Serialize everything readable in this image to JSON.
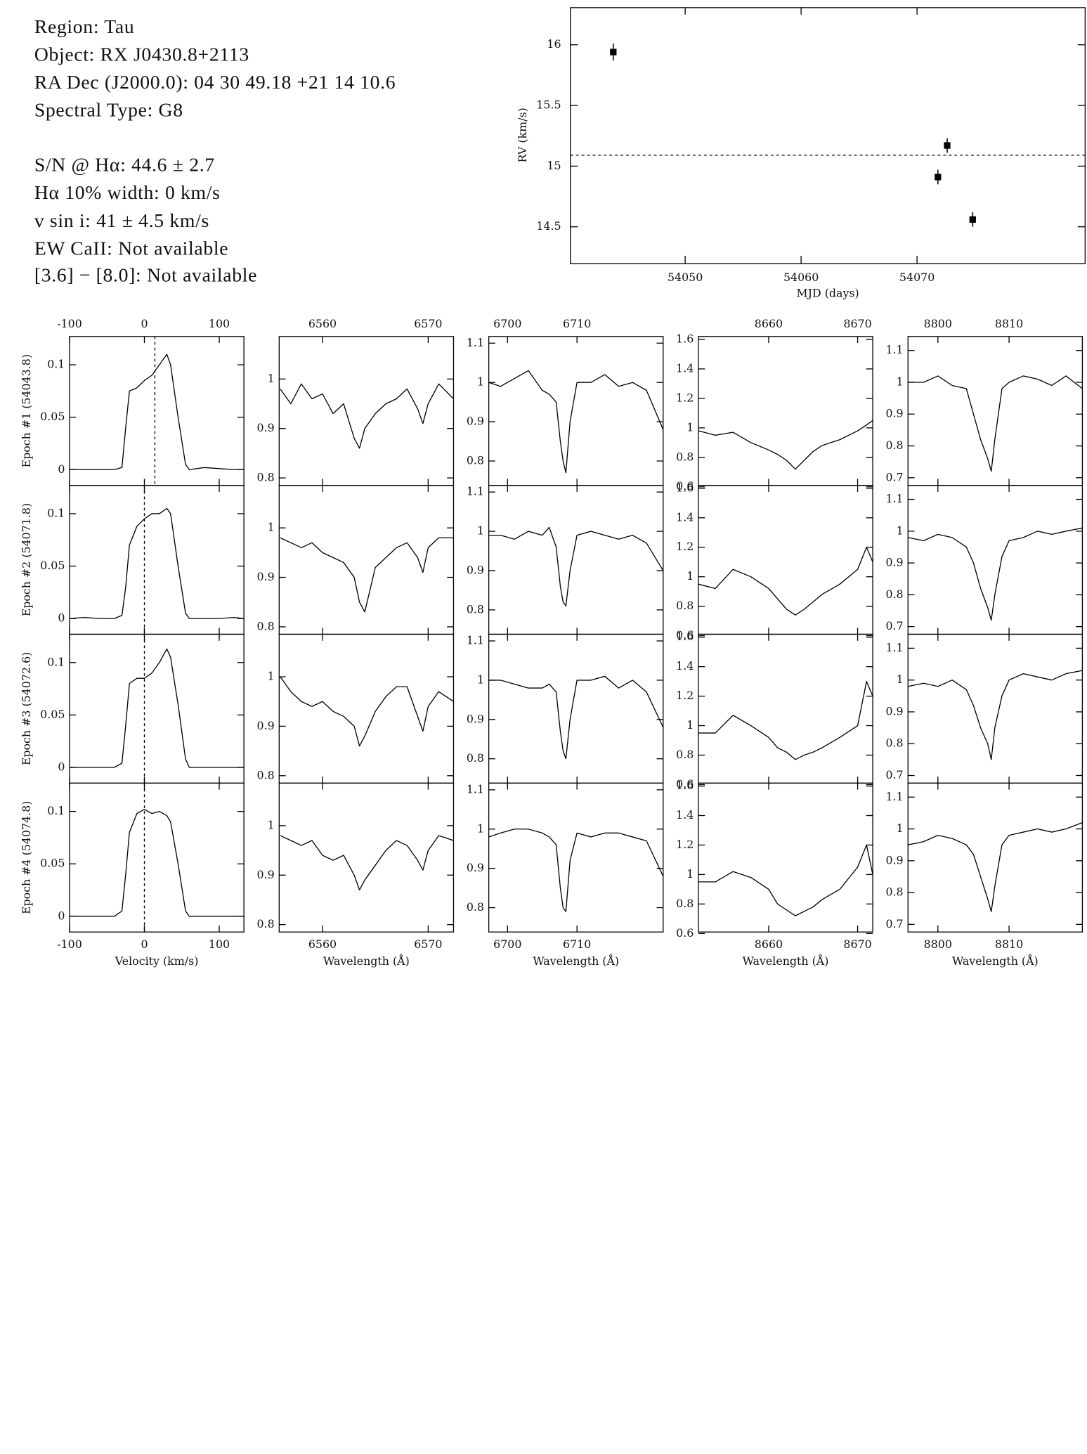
{
  "info": {
    "lines": [
      "Region: Tau",
      "Object: RX J0430.8+2113",
      "RA Dec (J2000.0): 04 30 49.18 +21 14 10.6",
      "Spectral Type: G8",
      "S/N @ Hα: 44.6 ± 2.7",
      "Hα 10% width: 0 km/s",
      "v sin i: 41 ± 4.5 km/s",
      "EW CaII: Not available",
      "[3.6] − [8.0]: Not available"
    ]
  },
  "chart_data": [
    {
      "type": "scatter",
      "xlabel": "MJD (days)",
      "ylabel": "RV (km/s)",
      "x": [
        54043.8,
        54071.8,
        54072.6,
        54074.8
      ],
      "values": [
        15.94,
        14.91,
        15.17,
        14.56
      ],
      "errors": [
        0.07,
        0.06,
        0.06,
        0.06
      ],
      "reference_line": 15.09,
      "xlim": [
        54040.1,
        54084.5
      ],
      "ylim": [
        14.2,
        16.31
      ],
      "xticks": [
        54050,
        54060,
        54070
      ],
      "yticks": [
        14.5,
        15,
        15.5,
        16
      ],
      "color": "#000000"
    },
    {
      "type": "spectra",
      "xlabel": "Velocity (km/s)",
      "xlim": [
        -100,
        133
      ],
      "ylim": [
        -0.015,
        0.127
      ],
      "xticks": [
        -100,
        0,
        100
      ],
      "yticks": [
        0,
        0.05,
        0.1
      ],
      "x": [
        -100,
        -80,
        -60,
        -40,
        -30,
        -25,
        -20,
        -10,
        0,
        10,
        20,
        30,
        35,
        45,
        55,
        60,
        80,
        100,
        120,
        133
      ],
      "series": [
        {
          "name": "Epoch #1 (54043.8)",
          "marker_x": 14,
          "values": [
            0,
            0,
            0,
            0,
            0.002,
            0.04,
            0.075,
            0.078,
            0.085,
            0.09,
            0.1,
            0.11,
            0.1,
            0.05,
            0.005,
            0,
            0.002,
            0.001,
            0,
            0
          ]
        },
        {
          "name": "Epoch #2 (54071.8)",
          "marker_x": 0,
          "values": [
            0,
            0.001,
            0,
            0,
            0.003,
            0.03,
            0.07,
            0.088,
            0.095,
            0.1,
            0.1,
            0.105,
            0.1,
            0.05,
            0.005,
            0,
            0,
            0,
            0.001,
            0
          ]
        },
        {
          "name": "Epoch #3 (54072.6)",
          "marker_x": 0,
          "values": [
            0,
            0,
            0,
            0,
            0.004,
            0.04,
            0.08,
            0.085,
            0.085,
            0.09,
            0.1,
            0.113,
            0.105,
            0.06,
            0.008,
            0,
            0,
            0,
            0,
            0
          ]
        },
        {
          "name": "Epoch #4 (54074.8)",
          "marker_x": 0,
          "values": [
            0,
            0,
            0,
            0,
            0.005,
            0.04,
            0.08,
            0.098,
            0.102,
            0.098,
            0.1,
            0.096,
            0.09,
            0.05,
            0.005,
            0,
            0,
            0,
            0,
            0
          ]
        }
      ]
    },
    {
      "type": "spectra",
      "xlabel": "Wavelength (Å)",
      "xlim": [
        6555.9,
        6572.4
      ],
      "ylim": [
        0.785,
        1.086
      ],
      "xticks": [
        6560,
        6570
      ],
      "yticks": [
        0.8,
        0.9,
        1
      ],
      "x": [
        6556,
        6557,
        6558,
        6559,
        6560,
        6561,
        6562,
        6563,
        6563.5,
        6564,
        6565,
        6566,
        6567,
        6568,
        6569,
        6569.5,
        6570,
        6571,
        6572.4
      ],
      "series": [
        {
          "values": [
            0.98,
            0.95,
            0.99,
            0.96,
            0.97,
            0.93,
            0.95,
            0.88,
            0.86,
            0.9,
            0.93,
            0.95,
            0.96,
            0.98,
            0.94,
            0.91,
            0.95,
            0.99,
            0.96
          ]
        },
        {
          "values": [
            0.98,
            0.97,
            0.96,
            0.97,
            0.95,
            0.94,
            0.93,
            0.9,
            0.85,
            0.83,
            0.92,
            0.94,
            0.96,
            0.97,
            0.94,
            0.91,
            0.96,
            0.98,
            0.98
          ]
        },
        {
          "values": [
            1.0,
            0.97,
            0.95,
            0.94,
            0.95,
            0.93,
            0.92,
            0.9,
            0.86,
            0.88,
            0.93,
            0.96,
            0.98,
            0.98,
            0.92,
            0.89,
            0.94,
            0.97,
            0.95
          ]
        },
        {
          "values": [
            0.98,
            0.97,
            0.96,
            0.97,
            0.94,
            0.93,
            0.94,
            0.9,
            0.87,
            0.89,
            0.92,
            0.95,
            0.97,
            0.96,
            0.93,
            0.91,
            0.95,
            0.98,
            0.97
          ]
        }
      ]
    },
    {
      "type": "spectra",
      "xlabel": "Wavelength (Å)",
      "xlim": [
        6697.3,
        6722.4
      ],
      "ylim": [
        0.738,
        1.117
      ],
      "xticks": [
        6700,
        6710
      ],
      "yticks": [
        0.8,
        0.9,
        1,
        1.1
      ],
      "x": [
        6697.3,
        6699,
        6701,
        6703,
        6705,
        6706,
        6707,
        6707.6,
        6708,
        6708.4,
        6709,
        6710,
        6712,
        6714,
        6716,
        6718,
        6720,
        6722.4
      ],
      "series": [
        {
          "values": [
            1.0,
            0.99,
            1.01,
            1.03,
            0.98,
            0.97,
            0.95,
            0.85,
            0.8,
            0.77,
            0.9,
            1.0,
            1.0,
            1.02,
            0.99,
            1.0,
            0.98,
            0.88
          ]
        },
        {
          "values": [
            0.99,
            0.99,
            0.98,
            1.0,
            0.99,
            1.01,
            0.96,
            0.86,
            0.82,
            0.81,
            0.9,
            0.99,
            1.0,
            0.99,
            0.98,
            0.99,
            0.97,
            0.9
          ]
        },
        {
          "values": [
            1.0,
            1.0,
            0.99,
            0.98,
            0.98,
            0.99,
            0.97,
            0.87,
            0.82,
            0.8,
            0.9,
            1.0,
            1.0,
            1.01,
            0.98,
            1.0,
            0.97,
            0.88
          ]
        },
        {
          "values": [
            0.98,
            0.99,
            1.0,
            1.0,
            0.99,
            0.98,
            0.96,
            0.85,
            0.8,
            0.79,
            0.92,
            0.99,
            0.98,
            0.99,
            0.99,
            0.98,
            0.97,
            0.88
          ]
        }
      ]
    },
    {
      "type": "spectra",
      "xlabel": "Wavelength (Å)",
      "xlim": [
        8652.1,
        8671.7
      ],
      "ylim": [
        0.61,
        1.62
      ],
      "xticks": [
        8660,
        8670
      ],
      "yticks": [
        0.6,
        0.8,
        1,
        1.2,
        1.4,
        1.6
      ],
      "x": [
        8652.1,
        8654,
        8656,
        8658,
        8660,
        8661,
        8662,
        8663,
        8664,
        8665,
        8666,
        8668,
        8670,
        8671,
        8671.7
      ],
      "series": [
        {
          "values": [
            0.98,
            0.95,
            0.97,
            0.9,
            0.85,
            0.82,
            0.78,
            0.72,
            0.78,
            0.84,
            0.88,
            0.92,
            0.98,
            1.02,
            1.05
          ]
        },
        {
          "values": [
            0.95,
            0.92,
            1.05,
            1.0,
            0.92,
            0.85,
            0.78,
            0.74,
            0.78,
            0.83,
            0.88,
            0.95,
            1.05,
            1.2,
            1.1
          ]
        },
        {
          "values": [
            0.95,
            0.95,
            1.07,
            1.0,
            0.92,
            0.85,
            0.82,
            0.77,
            0.8,
            0.82,
            0.85,
            0.92,
            1.0,
            1.3,
            1.2
          ]
        },
        {
          "values": [
            0.95,
            0.95,
            1.02,
            0.98,
            0.9,
            0.8,
            0.76,
            0.72,
            0.75,
            0.78,
            0.83,
            0.9,
            1.05,
            1.2,
            1.0
          ]
        }
      ]
    },
    {
      "type": "spectra",
      "xlabel": "Wavelength (Å)",
      "xlim": [
        8795.8,
        8820.3
      ],
      "ylim": [
        0.676,
        1.144
      ],
      "xticks": [
        8800,
        8810
      ],
      "yticks": [
        0.7,
        0.8,
        0.9,
        1,
        1.1
      ],
      "x": [
        8795.8,
        8798,
        8800,
        8802,
        8804,
        8805,
        8806,
        8807,
        8807.5,
        8808,
        8809,
        8810,
        8812,
        8814,
        8816,
        8818,
        8820.3
      ],
      "series": [
        {
          "values": [
            1.0,
            1.0,
            1.02,
            0.99,
            0.98,
            0.9,
            0.82,
            0.76,
            0.72,
            0.82,
            0.98,
            1.0,
            1.02,
            1.01,
            0.99,
            1.02,
            0.98
          ]
        },
        {
          "values": [
            0.98,
            0.97,
            0.99,
            0.98,
            0.95,
            0.9,
            0.82,
            0.76,
            0.72,
            0.8,
            0.92,
            0.97,
            0.98,
            1.0,
            0.99,
            1.0,
            1.01
          ]
        },
        {
          "values": [
            0.98,
            0.99,
            0.98,
            1.0,
            0.97,
            0.92,
            0.85,
            0.8,
            0.75,
            0.85,
            0.95,
            1.0,
            1.02,
            1.01,
            1.0,
            1.02,
            1.03
          ]
        },
        {
          "values": [
            0.95,
            0.96,
            0.98,
            0.97,
            0.95,
            0.92,
            0.85,
            0.78,
            0.74,
            0.82,
            0.95,
            0.98,
            0.99,
            1.0,
            0.99,
            1.0,
            1.02
          ]
        }
      ]
    }
  ]
}
